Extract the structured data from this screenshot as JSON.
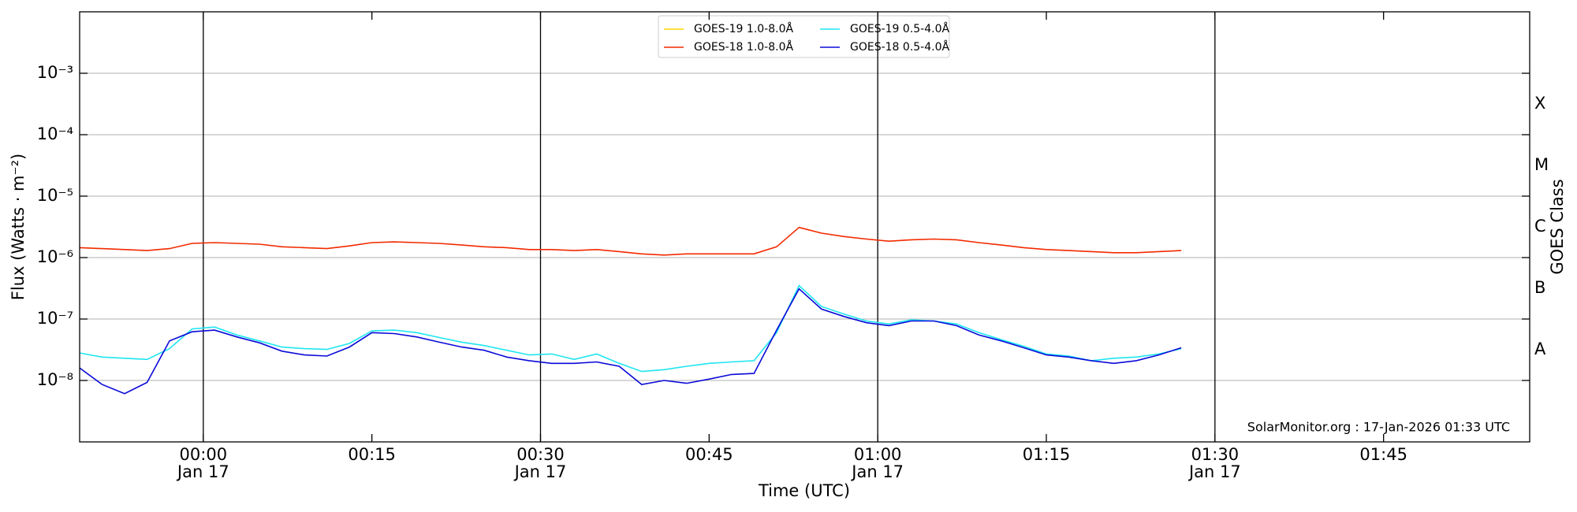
{
  "chart_data": {
    "type": "line",
    "log_y": true,
    "grid": true,
    "legend": "upper center",
    "ylabel": "Flux (Watts · m⁻²)",
    "xlabel": "Time (UTC)",
    "y2label": "GOES Class",
    "annotation": "SolarMonitor.org : 17-Jan-2026 01:33 UTC",
    "xlim": [
      "23:49",
      "01:58"
    ],
    "ylim": [
      1e-09,
      0.01
    ],
    "xticks": [
      {
        "value": "00:00",
        "label": [
          "00:00",
          "Jan 17"
        ]
      },
      {
        "value": "00:15",
        "label": [
          "00:15"
        ]
      },
      {
        "value": "00:30",
        "label": [
          "00:30",
          "Jan 17"
        ]
      },
      {
        "value": "00:45",
        "label": [
          "00:45"
        ]
      },
      {
        "value": "01:00",
        "label": [
          "01:00",
          "Jan 17"
        ]
      },
      {
        "value": "01:15",
        "label": [
          "01:15"
        ]
      },
      {
        "value": "01:30",
        "label": [
          "01:30",
          "Jan 17"
        ]
      },
      {
        "value": "01:45",
        "label": [
          "01:45"
        ]
      }
    ],
    "yticks": [
      {
        "value": 1e-08,
        "label": "10⁻⁸"
      },
      {
        "value": 1e-07,
        "label": "10⁻⁷"
      },
      {
        "value": 1e-06,
        "label": "10⁻⁶"
      },
      {
        "value": 1e-05,
        "label": "10⁻⁵"
      },
      {
        "value": 0.0001,
        "label": "10⁻⁴"
      },
      {
        "value": 0.001,
        "label": "10⁻³"
      }
    ],
    "classes": [
      {
        "value": 1e-08,
        "label": "A"
      },
      {
        "value": 1e-07,
        "label": "B"
      },
      {
        "value": 1e-06,
        "label": "C"
      },
      {
        "value": 1e-05,
        "label": "M"
      },
      {
        "value": 0.0001,
        "label": "X"
      }
    ],
    "x": [
      "23:49",
      "23:51",
      "23:53",
      "23:55",
      "23:57",
      "23:59",
      "00:01",
      "00:03",
      "00:05",
      "00:07",
      "00:09",
      "00:11",
      "00:13",
      "00:15",
      "00:17",
      "00:19",
      "00:21",
      "00:23",
      "00:25",
      "00:27",
      "00:29",
      "00:31",
      "00:33",
      "00:35",
      "00:37",
      "00:39",
      "00:41",
      "00:43",
      "00:45",
      "00:47",
      "00:49",
      "00:51",
      "00:53",
      "00:55",
      "00:57",
      "00:59",
      "01:01",
      "01:03",
      "01:05",
      "01:07",
      "01:09",
      "01:11",
      "01:13",
      "01:15",
      "01:17",
      "01:19",
      "01:21",
      "01:23",
      "01:25",
      "01:27"
    ],
    "series": [
      {
        "name": "GOES-19 1.0-8.0Å",
        "color": "#ffd700",
        "values": [
          null,
          null,
          null,
          null,
          null,
          null,
          null,
          null,
          null,
          null,
          null,
          null,
          null,
          null,
          null,
          null,
          null,
          null,
          null,
          null,
          null,
          null,
          null,
          null,
          null,
          null,
          null,
          null,
          null,
          null,
          null,
          null,
          null,
          null,
          null,
          null,
          null,
          null,
          null,
          null,
          null,
          null,
          null,
          null,
          null,
          null,
          null,
          null,
          null,
          null
        ]
      },
      {
        "name": "GOES-18 1.0-8.0Å",
        "color": "#f22a00",
        "values": [
          1.45e-06,
          1.4e-06,
          1.35e-06,
          1.3e-06,
          1.4e-06,
          1.7e-06,
          1.75e-06,
          1.7e-06,
          1.65e-06,
          1.5e-06,
          1.45e-06,
          1.4e-06,
          1.55e-06,
          1.75e-06,
          1.8e-06,
          1.75e-06,
          1.7e-06,
          1.6e-06,
          1.5e-06,
          1.45e-06,
          1.35e-06,
          1.35e-06,
          1.3e-06,
          1.35e-06,
          1.25e-06,
          1.15e-06,
          1.1e-06,
          1.15e-06,
          1.15e-06,
          1.15e-06,
          1.15e-06,
          1.5e-06,
          3.1e-06,
          2.5e-06,
          2.2e-06,
          2e-06,
          1.85e-06,
          1.95e-06,
          2e-06,
          1.95e-06,
          1.75e-06,
          1.6e-06,
          1.45e-06,
          1.35e-06,
          1.3e-06,
          1.25e-06,
          1.2e-06,
          1.2e-06,
          1.25e-06,
          1.3e-06
        ]
      },
      {
        "name": "GOES-19 0.5-4.0Å",
        "color": "#1ee6f0",
        "values": [
          2.8e-08,
          2.4e-08,
          2.3e-08,
          2.2e-08,
          3.3e-08,
          6.9e-08,
          7.4e-08,
          5.5e-08,
          4.4e-08,
          3.5e-08,
          3.3e-08,
          3.2e-08,
          4e-08,
          6.4e-08,
          6.6e-08,
          6e-08,
          5e-08,
          4.2e-08,
          3.7e-08,
          3.1e-08,
          2.6e-08,
          2.7e-08,
          2.2e-08,
          2.7e-08,
          1.9e-08,
          1.4e-08,
          1.5e-08,
          1.7e-08,
          1.9e-08,
          2e-08,
          2.1e-08,
          6e-08,
          3.5e-07,
          1.6e-07,
          1.2e-07,
          9.3e-08,
          8.3e-08,
          9.7e-08,
          9.3e-08,
          8.3e-08,
          6e-08,
          4.6e-08,
          3.6e-08,
          2.7e-08,
          2.5e-08,
          2.1e-08,
          2.3e-08,
          2.4e-08,
          2.7e-08,
          3.3e-08
        ]
      },
      {
        "name": "GOES-18 0.5-4.0Å",
        "color": "#0a0ad8",
        "values": [
          1.6e-08,
          8.6e-09,
          6.1e-09,
          9.3e-09,
          4.4e-08,
          6.2e-08,
          6.6e-08,
          5.1e-08,
          4.1e-08,
          3e-08,
          2.6e-08,
          2.5e-08,
          3.5e-08,
          6e-08,
          5.8e-08,
          5.1e-08,
          4.2e-08,
          3.5e-08,
          3.1e-08,
          2.4e-08,
          2.1e-08,
          1.9e-08,
          1.9e-08,
          2e-08,
          1.7e-08,
          8.6e-09,
          1e-08,
          9e-09,
          1.05e-08,
          1.25e-08,
          1.3e-08,
          6.6e-08,
          3.1e-07,
          1.45e-07,
          1.1e-07,
          8.7e-08,
          7.8e-08,
          9.3e-08,
          9.3e-08,
          7.8e-08,
          5.5e-08,
          4.4e-08,
          3.4e-08,
          2.6e-08,
          2.4e-08,
          2.1e-08,
          1.9e-08,
          2.1e-08,
          2.6e-08,
          3.4e-08
        ]
      }
    ]
  }
}
